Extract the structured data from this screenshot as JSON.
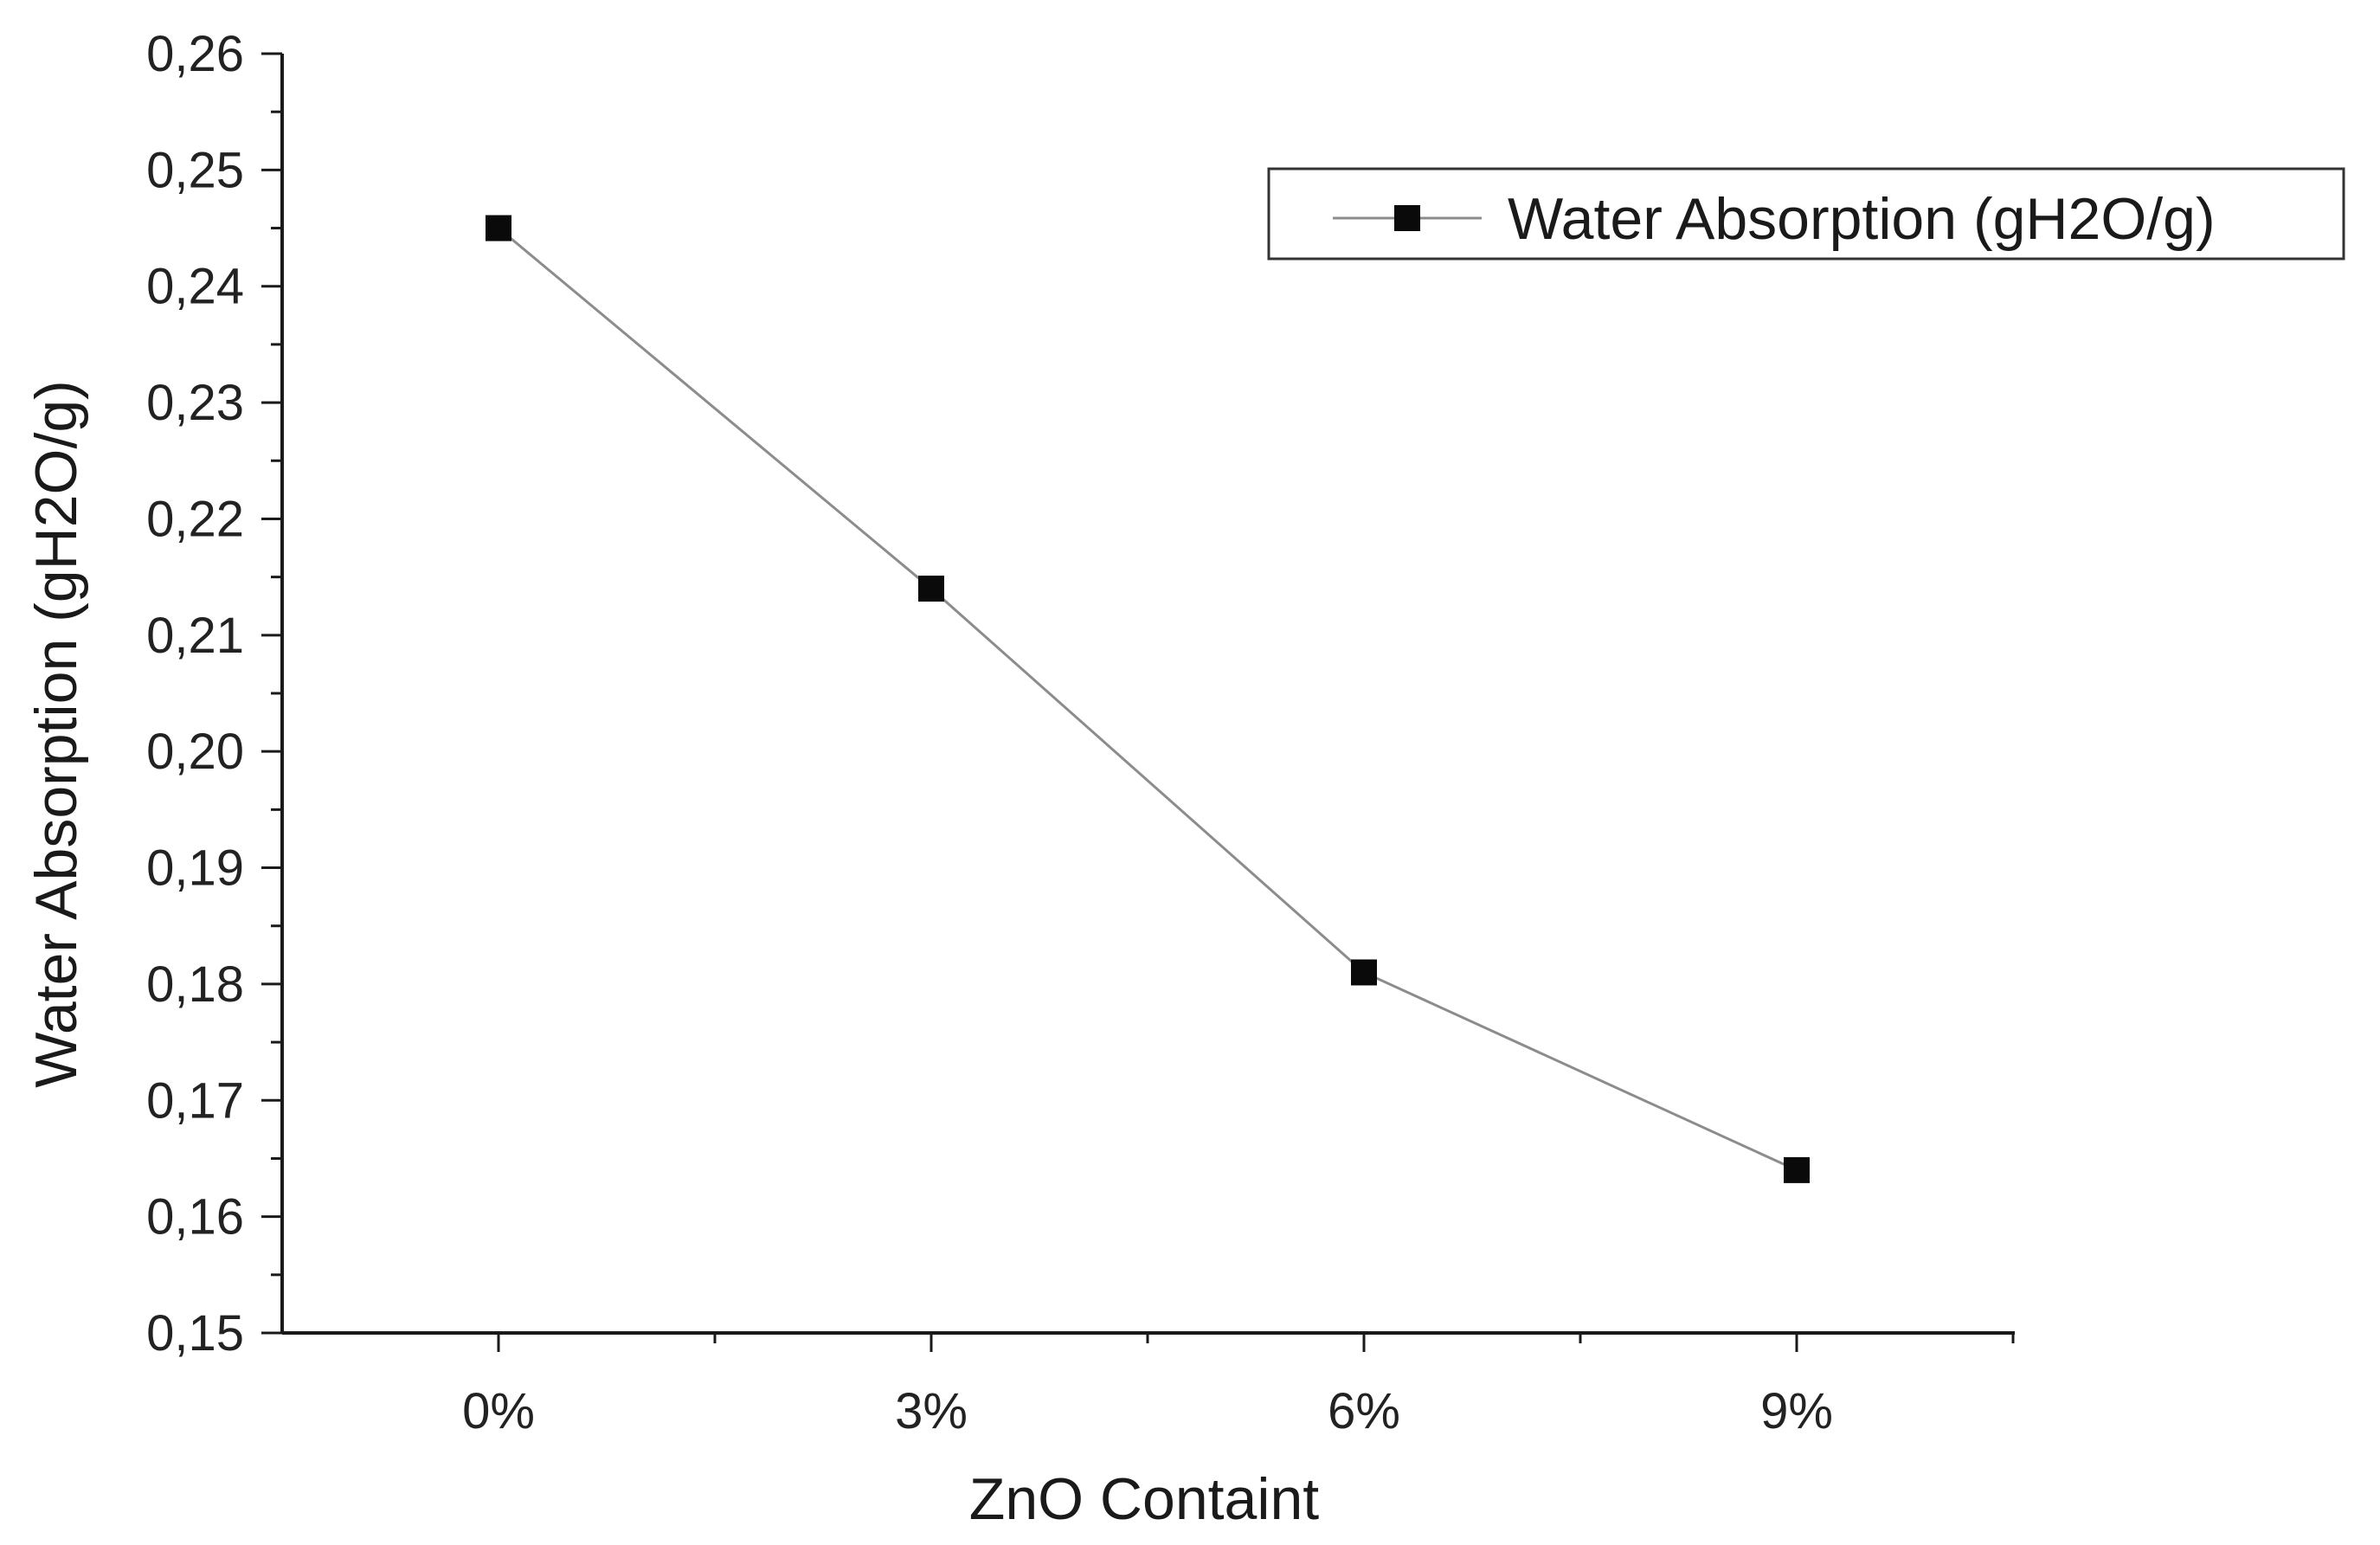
{
  "chart_data": {
    "type": "line",
    "title": "",
    "xlabel": "ZnO Containt",
    "ylabel": "Water Absorption (gH2O/g)",
    "categories": [
      "0%",
      "3%",
      "6%",
      "9%"
    ],
    "series": [
      {
        "name": "Water Absorption (gH2O/g)",
        "values": [
          0.245,
          0.214,
          0.181,
          0.164
        ],
        "marker": "square"
      }
    ],
    "ylim": [
      0.15,
      0.26
    ],
    "yticks": [
      0.15,
      0.16,
      0.17,
      0.18,
      0.19,
      0.2,
      0.21,
      0.22,
      0.23,
      0.24,
      0.25,
      0.26
    ],
    "ytick_labels": [
      "0,15",
      "0,16",
      "0,17",
      "0,18",
      "0,19",
      "0,20",
      "0,21",
      "0,22",
      "0,23",
      "0,24",
      "0,25",
      "0,26"
    ],
    "grid": false,
    "legend_position": "top-right",
    "colors": {
      "line": "#8c8c8c",
      "marker": "#0a0a0a",
      "axis": "#1a1a1a"
    }
  }
}
